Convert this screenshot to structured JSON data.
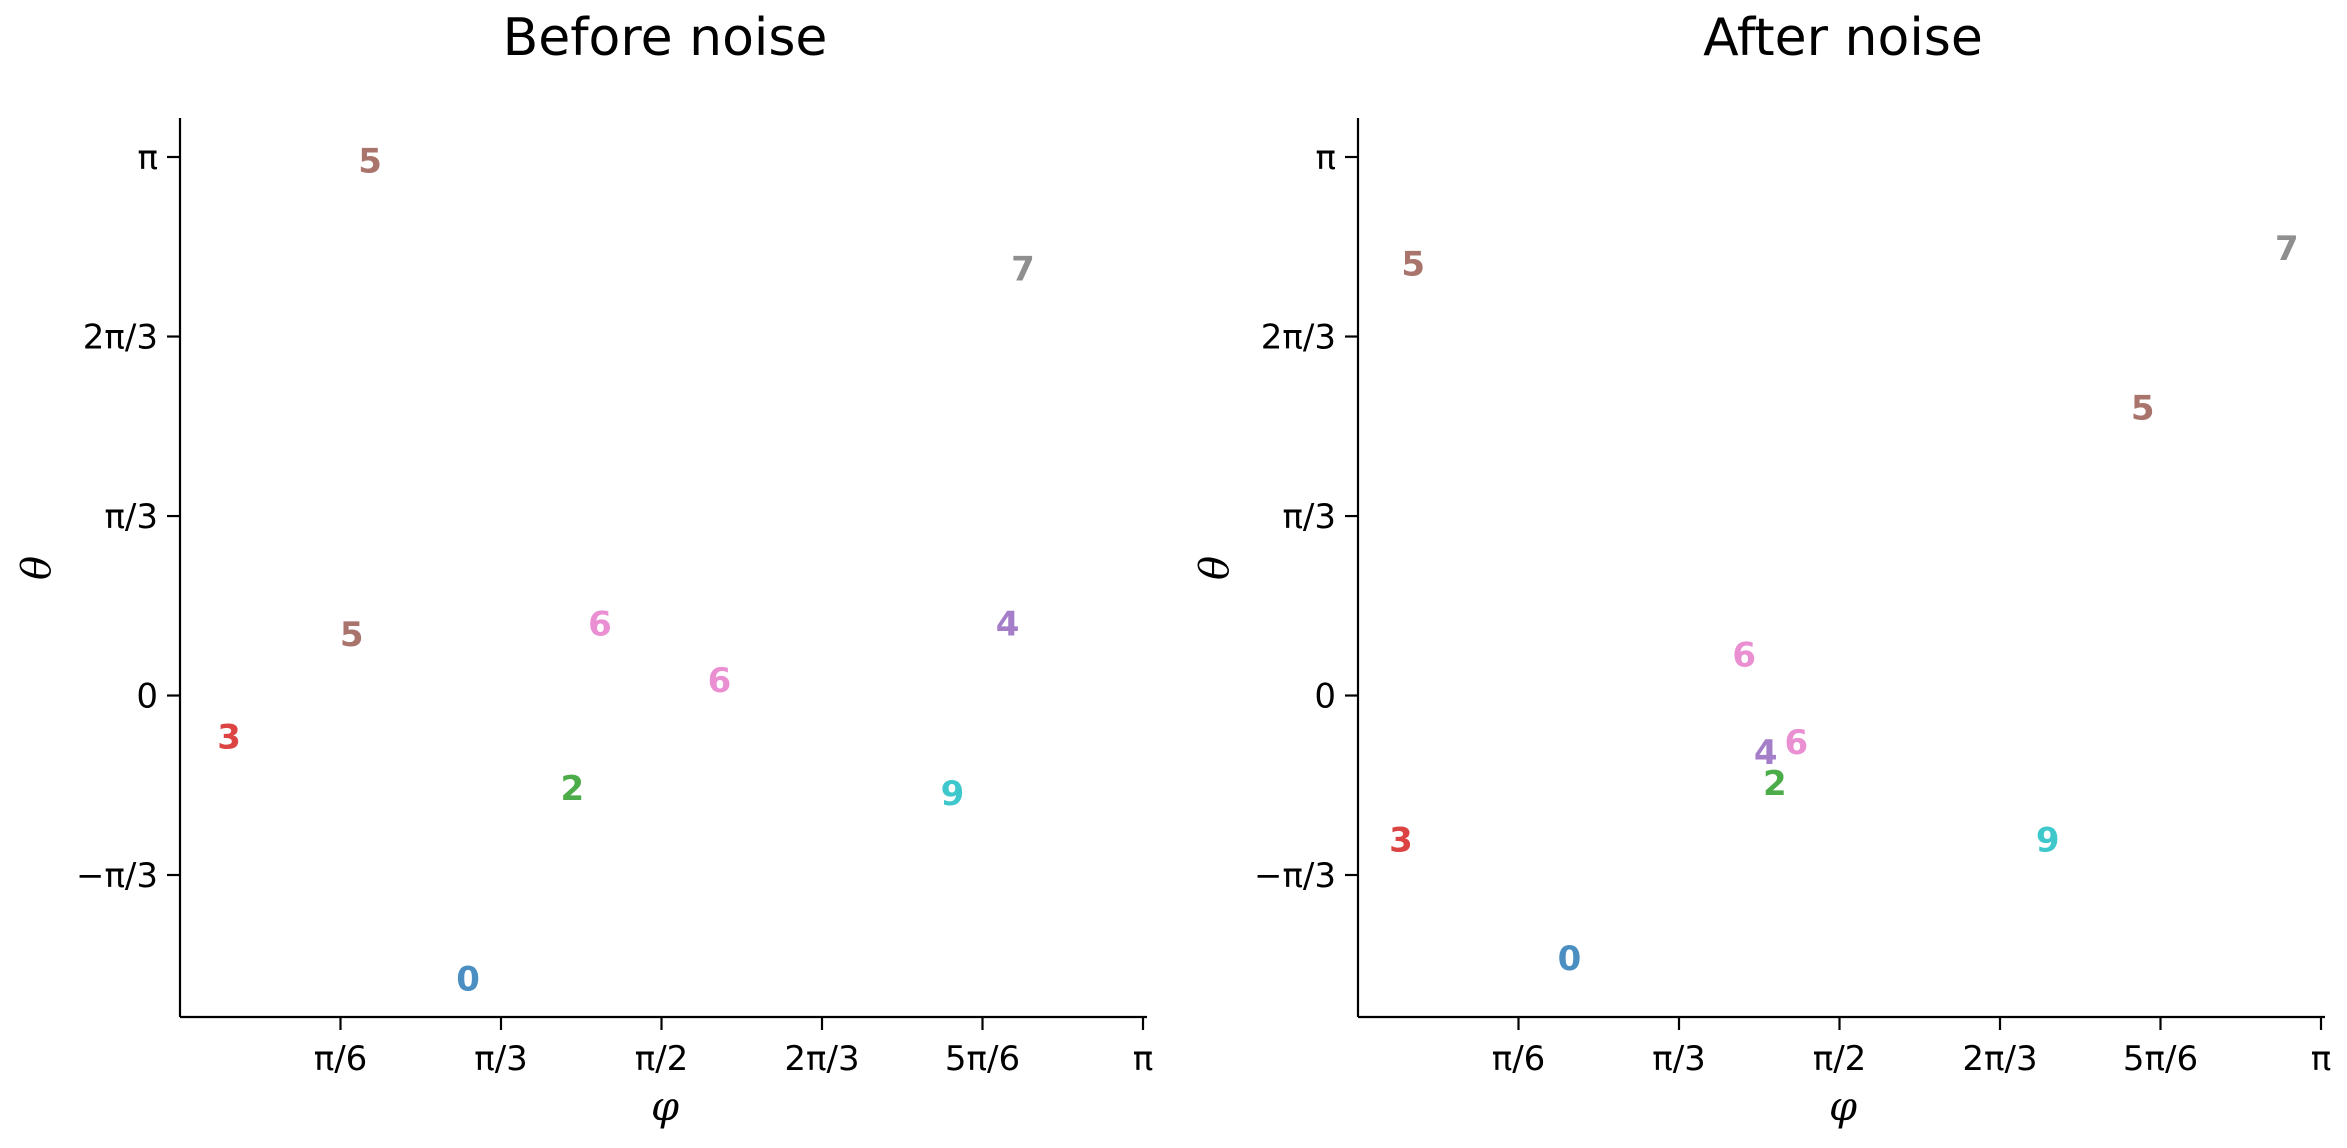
{
  "figure": {
    "colors": {
      "0": "#4a8ec2",
      "2": "#4dac4a",
      "3": "#dc4444",
      "4": "#a47ec8",
      "5": "#a8746c",
      "6": "#e98fd2",
      "7": "#8f8f8f",
      "9": "#3ec8cc"
    }
  },
  "chart_data": [
    {
      "type": "scatter",
      "title": "Before noise",
      "xlabel": "φ",
      "ylabel": "θ",
      "xlim": [
        0,
        3.1416
      ],
      "ylim": [
        -2.26,
        1.32
      ],
      "x_ticks": [
        {
          "value": 0.5236,
          "label": "π/6"
        },
        {
          "value": 1.0472,
          "label": "π/3"
        },
        {
          "value": 1.5708,
          "label": "π/2"
        },
        {
          "value": 2.0944,
          "label": "2π/3"
        },
        {
          "value": 2.618,
          "label": "5π/6"
        },
        {
          "value": 3.1416,
          "label": "π"
        }
      ],
      "y_ticks": [
        {
          "value": 1.0472,
          "label": "π"
        },
        {
          "value": 0.6981,
          "label": "2π/3"
        },
        {
          "value": 0.349,
          "label": "π/3"
        },
        {
          "value": 0,
          "label": "0"
        },
        {
          "value": -0.349,
          "label": "−π/3"
        }
      ],
      "points": [
        {
          "label": "5",
          "x": 0.62,
          "y": 1.04
        },
        {
          "label": "7",
          "x": 2.75,
          "y": 0.83
        },
        {
          "label": "5",
          "x": 0.56,
          "y": 0.12
        },
        {
          "label": "6",
          "x": 1.37,
          "y": 0.14
        },
        {
          "label": "6",
          "x": 1.76,
          "y": 0.03
        },
        {
          "label": "4",
          "x": 2.7,
          "y": 0.14
        },
        {
          "label": "3",
          "x": 0.16,
          "y": -0.08
        },
        {
          "label": "2",
          "x": 1.28,
          "y": -0.18
        },
        {
          "label": "9",
          "x": 2.52,
          "y": -0.19
        },
        {
          "label": "0",
          "x": 0.94,
          "y": -0.55
        }
      ]
    },
    {
      "type": "scatter",
      "title": "After noise",
      "xlabel": "φ",
      "ylabel": "θ",
      "xlim": [
        0,
        3.1416
      ],
      "ylim": [
        -2.26,
        1.32
      ],
      "x_ticks": [
        {
          "value": 0.5236,
          "label": "π/6"
        },
        {
          "value": 1.0472,
          "label": "π/3"
        },
        {
          "value": 1.5708,
          "label": "π/2"
        },
        {
          "value": 2.0944,
          "label": "2π/3"
        },
        {
          "value": 2.618,
          "label": "5π/6"
        },
        {
          "value": 3.1416,
          "label": "π"
        }
      ],
      "y_ticks": [
        {
          "value": 1.0472,
          "label": "π"
        },
        {
          "value": 0.6981,
          "label": "2π/3"
        },
        {
          "value": 0.349,
          "label": "π/3"
        },
        {
          "value": 0,
          "label": "0"
        },
        {
          "value": -0.349,
          "label": "−π/3"
        }
      ],
      "points": [
        {
          "label": "5",
          "x": 0.18,
          "y": 0.84
        },
        {
          "label": "7",
          "x": 3.03,
          "y": 0.87
        },
        {
          "label": "5",
          "x": 2.56,
          "y": 0.56
        },
        {
          "label": "6",
          "x": 1.26,
          "y": 0.08
        },
        {
          "label": "4",
          "x": 1.33,
          "y": -0.11
        },
        {
          "label": "6",
          "x": 1.43,
          "y": -0.09
        },
        {
          "label": "2",
          "x": 1.36,
          "y": -0.17
        },
        {
          "label": "3",
          "x": 0.14,
          "y": -0.28
        },
        {
          "label": "9",
          "x": 2.25,
          "y": -0.28
        },
        {
          "label": "0",
          "x": 0.69,
          "y": -0.51
        }
      ]
    }
  ]
}
